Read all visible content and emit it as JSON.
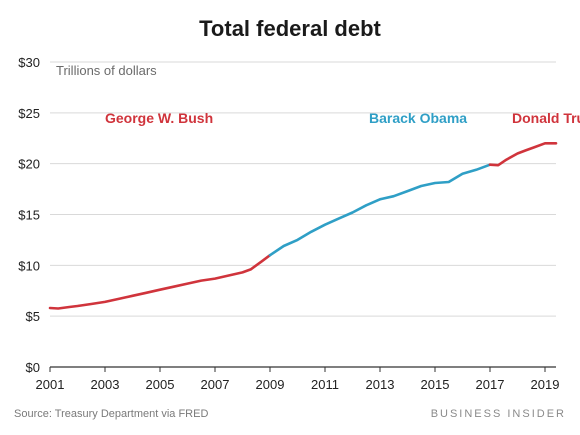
{
  "chart_data": {
    "type": "line",
    "title": "Total federal debt",
    "subtitle": "Trillions of dollars",
    "ylim": [
      0,
      30
    ],
    "xlim": [
      2001,
      2019.4
    ],
    "y_ticks": [
      {
        "value": 0,
        "label": "$0"
      },
      {
        "value": 5,
        "label": "$5"
      },
      {
        "value": 10,
        "label": "$10"
      },
      {
        "value": 15,
        "label": "$15"
      },
      {
        "value": 20,
        "label": "$20"
      },
      {
        "value": 25,
        "label": "$25"
      },
      {
        "value": 30,
        "label": "$30"
      }
    ],
    "x_ticks": [
      {
        "value": 2001,
        "label": "2001"
      },
      {
        "value": 2003,
        "label": "2003"
      },
      {
        "value": 2005,
        "label": "2005"
      },
      {
        "value": 2007,
        "label": "2007"
      },
      {
        "value": 2009,
        "label": "2009"
      },
      {
        "value": 2011,
        "label": "2011"
      },
      {
        "value": 2013,
        "label": "2013"
      },
      {
        "value": 2015,
        "label": "2015"
      },
      {
        "value": 2017,
        "label": "2017"
      },
      {
        "value": 2019,
        "label": "2019"
      }
    ],
    "grid": true,
    "series": [
      {
        "name": "George W. Bush",
        "color": "#d0343c",
        "x": [
          2001.0,
          2001.3,
          2001.7,
          2002.0,
          2002.5,
          2003.0,
          2003.5,
          2004.0,
          2004.5,
          2005.0,
          2005.5,
          2006.0,
          2006.5,
          2007.0,
          2007.5,
          2008.0,
          2008.3,
          2008.7,
          2009.0
        ],
        "y": [
          5.8,
          5.75,
          5.9,
          6.0,
          6.2,
          6.4,
          6.7,
          7.0,
          7.3,
          7.6,
          7.9,
          8.2,
          8.5,
          8.7,
          9.0,
          9.3,
          9.6,
          10.4,
          11.0
        ]
      },
      {
        "name": "Barack Obama",
        "color": "#2f9fc6",
        "x": [
          2009.0,
          2009.5,
          2010.0,
          2010.5,
          2011.0,
          2011.5,
          2012.0,
          2012.5,
          2013.0,
          2013.5,
          2014.0,
          2014.5,
          2015.0,
          2015.5,
          2016.0,
          2016.5,
          2017.0
        ],
        "y": [
          11.0,
          11.9,
          12.5,
          13.3,
          14.0,
          14.6,
          15.2,
          15.9,
          16.5,
          16.8,
          17.3,
          17.8,
          18.1,
          18.2,
          19.0,
          19.4,
          19.9
        ]
      },
      {
        "name": "Donald Trump",
        "color": "#d0343c",
        "x": [
          2017.0,
          2017.3,
          2017.6,
          2018.0,
          2018.3,
          2018.6,
          2019.0,
          2019.4
        ],
        "y": [
          19.9,
          19.85,
          20.4,
          21.0,
          21.3,
          21.6,
          22.0,
          22.0
        ]
      }
    ],
    "annotations": [
      {
        "text": "George W. Bush",
        "color": "#d0343c",
        "x": 2003.0,
        "y": 24.0
      },
      {
        "text": "Barack Obama",
        "color": "#2f9fc6",
        "x": 2012.6,
        "y": 24.0
      },
      {
        "text": "Donald Trump",
        "color": "#d0343c",
        "x": 2017.8,
        "y": 24.0
      }
    ],
    "source": "Source: Treasury Department via FRED",
    "brand": "BUSINESS INSIDER"
  }
}
